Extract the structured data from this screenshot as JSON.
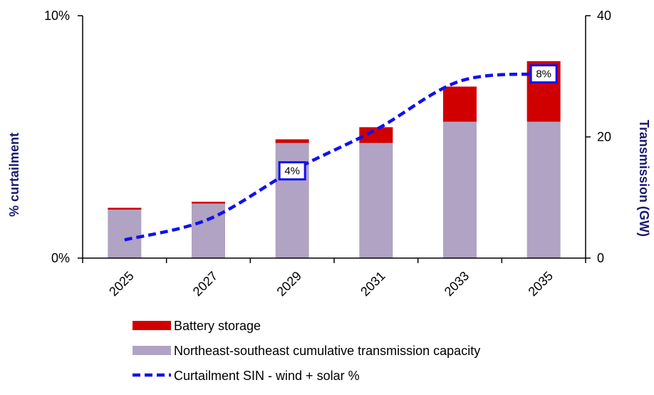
{
  "chart_data": {
    "type": "bar",
    "categories": [
      "2025",
      "2027",
      "2029",
      "2031",
      "2033",
      "2035"
    ],
    "series": [
      {
        "name": "Northeast-southeast cumulative transmission capacity",
        "axis": "right",
        "stack": "gw",
        "values": [
          8,
          9,
          19,
          19,
          22.5,
          22.5
        ],
        "color": "#b1a3c3"
      },
      {
        "name": "Battery storage",
        "axis": "right",
        "stack": "gw",
        "values": [
          0.3,
          0.3,
          0.6,
          2.6,
          5.8,
          10
        ],
        "color": "#d00000"
      },
      {
        "name": "Curtailment SIN - wind + solar %",
        "type": "line",
        "axis": "left",
        "style": "dashed",
        "values": [
          0.75,
          1.6,
          3.6,
          5.3,
          7.3,
          7.6
        ],
        "color": "#1111ee"
      }
    ],
    "y_left": {
      "label": "% curtailment",
      "ticks": [
        "0%",
        "10%"
      ],
      "range": [
        0,
        10
      ]
    },
    "y_right": {
      "label": "Transmission (GW)",
      "ticks": [
        "0",
        "20",
        "40"
      ],
      "range": [
        0,
        40
      ]
    },
    "data_labels": [
      {
        "category": "2029",
        "text": "4%"
      },
      {
        "category": "2035",
        "text": "8%"
      }
    ],
    "legend": {
      "position": "bottom"
    }
  }
}
